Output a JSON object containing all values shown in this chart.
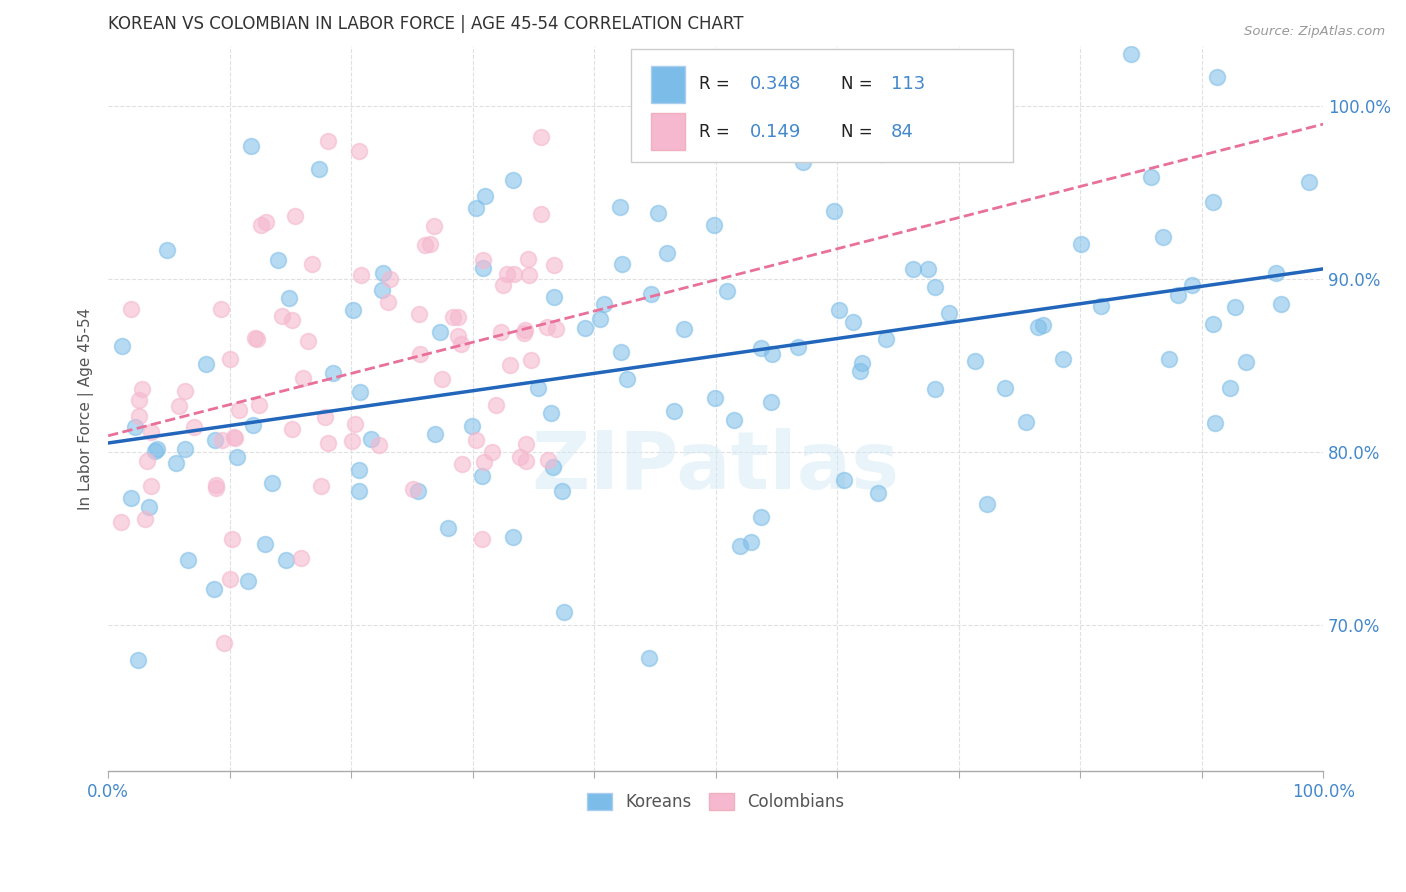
{
  "title": "KOREAN VS COLOMBIAN IN LABOR FORCE | AGE 45-54 CORRELATION CHART",
  "source": "Source: ZipAtlas.com",
  "ylabel": "In Labor Force | Age 45-54",
  "xlim": [
    0.0,
    1.0
  ],
  "ylim": [
    0.615,
    1.035
  ],
  "ytick_positions": [
    0.7,
    0.8,
    0.9,
    1.0
  ],
  "ytick_labels": [
    "70.0%",
    "80.0%",
    "90.0%",
    "100.0%"
  ],
  "korean_color": "#7bbce8",
  "colombian_color": "#f5b8ce",
  "korean_line_color": "#2266bb",
  "colombian_line_color": "#e8709a",
  "korean_R": 0.348,
  "korean_N": 113,
  "colombian_R": 0.149,
  "colombian_N": 84,
  "legend_labels": [
    "Koreans",
    "Colombians"
  ],
  "watermark": "ZIPatlas",
  "background_color": "#ffffff",
  "grid_color": "#e0e0e0",
  "title_color": "#333333",
  "axis_label_color": "#4488cc",
  "legend_R_color": "#4488cc",
  "legend_N_color": "#4488cc",
  "legend_text_color": "#222222"
}
